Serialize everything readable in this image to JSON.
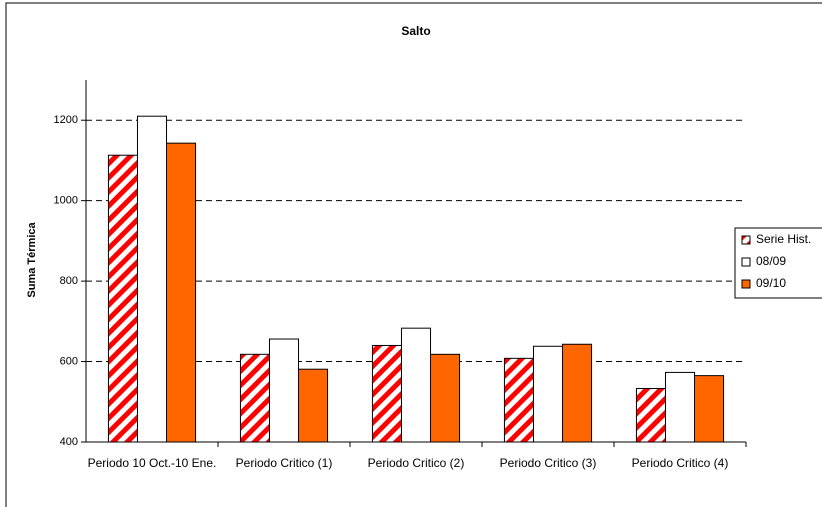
{
  "chart_data": {
    "type": "bar",
    "title": "Salto",
    "y_label": "Suma Térmica",
    "categories": [
      "Periodo  10 Oct.-10 Ene.",
      "Periodo Critico (1)",
      "Periodo Critico (2)",
      "Periodo Critico (3)",
      "Periodo Critico (4)"
    ],
    "series": [
      {
        "name": "Serie Hist.",
        "color": "#ff0000",
        "hatch": true,
        "values": [
          1113,
          618,
          640,
          608,
          533
        ]
      },
      {
        "name": "08/09",
        "color": "#ffffff",
        "values": [
          1210,
          656,
          683,
          638,
          573
        ]
      },
      {
        "name": "09/10",
        "color": "#ff6600",
        "values": [
          1143,
          581,
          618,
          643,
          565
        ]
      }
    ],
    "ylim": [
      400,
      1300
    ],
    "yticks": [
      400,
      600,
      800,
      1000,
      1200
    ],
    "grid": true,
    "legend": "right"
  }
}
